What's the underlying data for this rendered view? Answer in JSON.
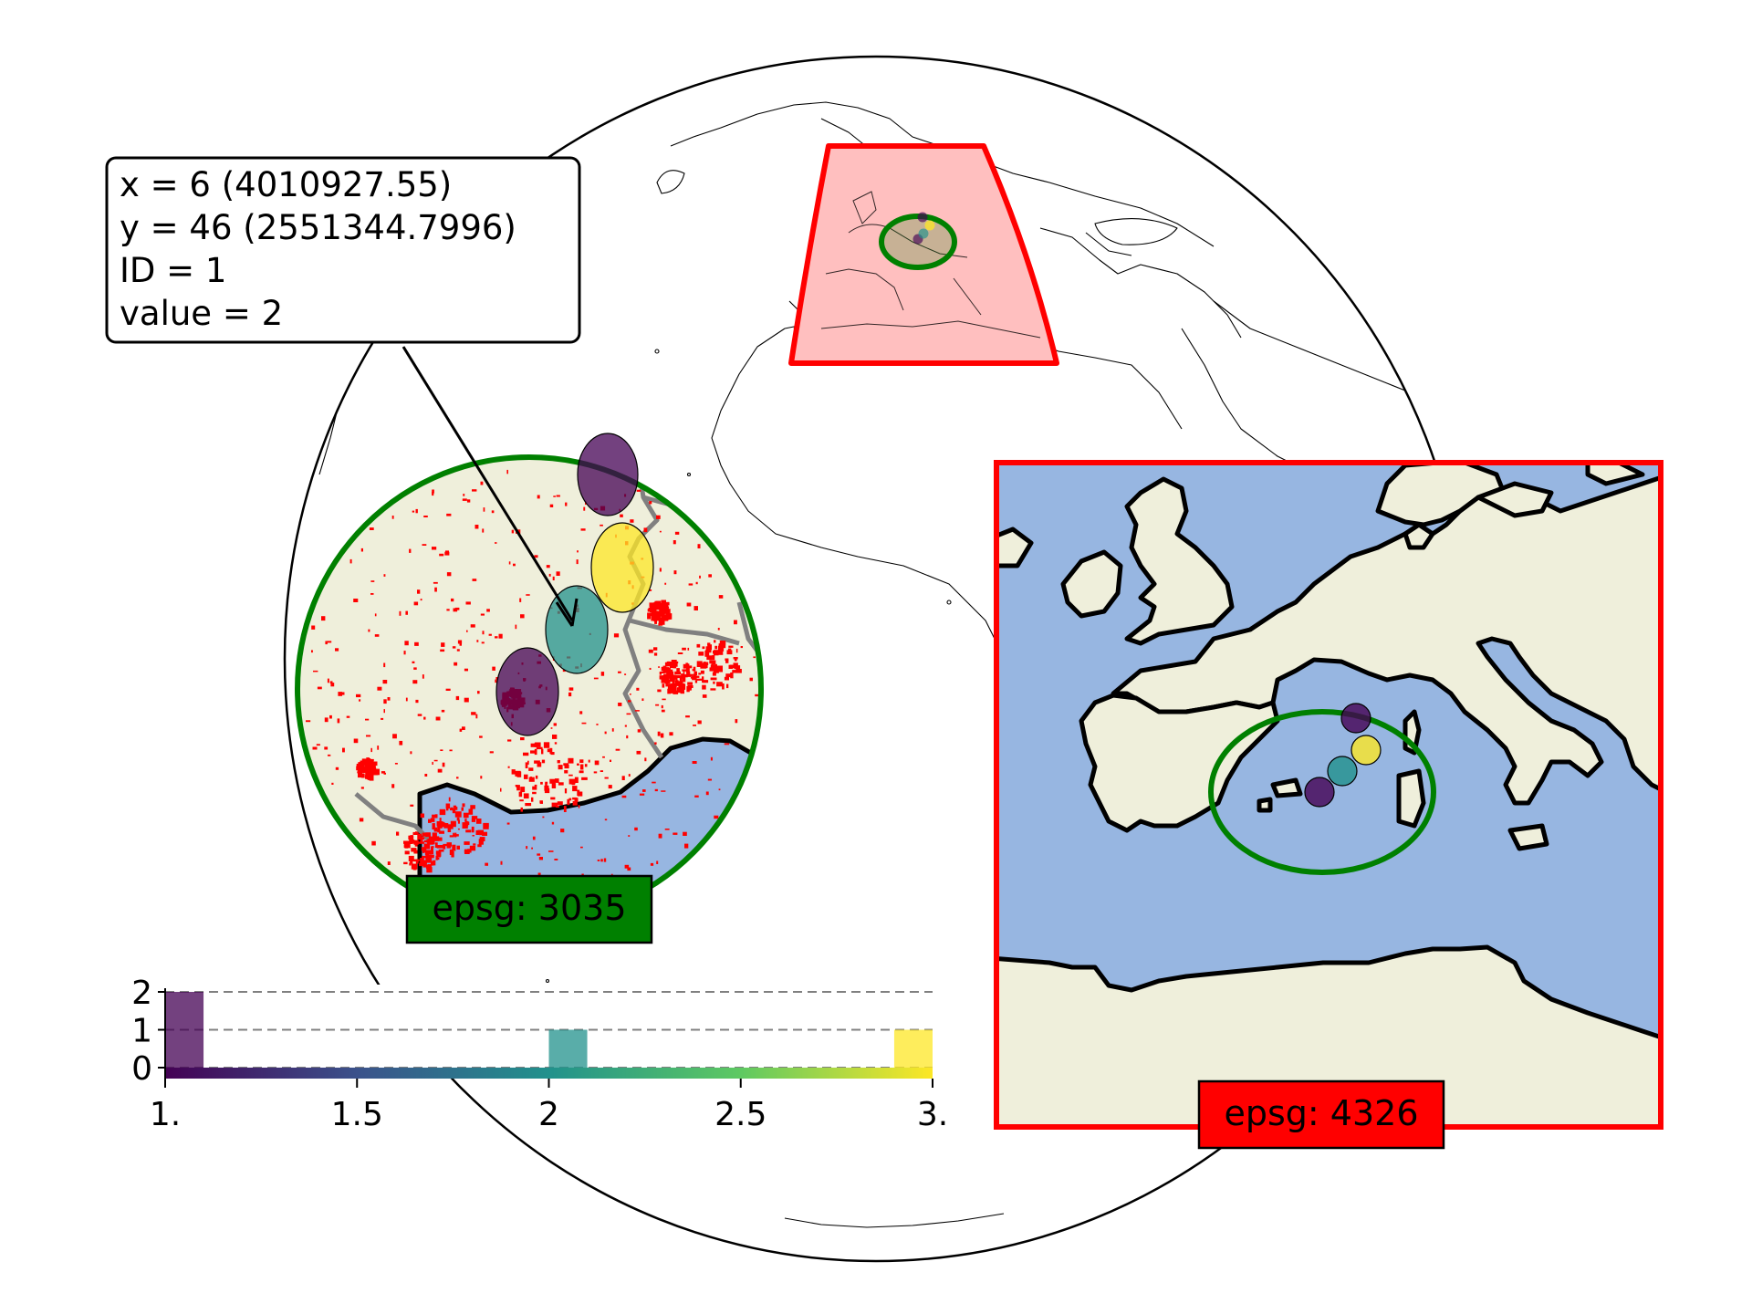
{
  "annotation": {
    "x_line": "x = 6 (4010927.55)",
    "y_line": "y = 46 (2551344.7996)",
    "id_line": "ID = 1",
    "value_line": "value = 2"
  },
  "inset_3035": {
    "label": "epsg: 3035"
  },
  "inset_4326": {
    "label": "epsg: 4326"
  },
  "colors": {
    "land": "#efefdb",
    "ocean": "#97b6e1",
    "inset_4326_frame": "#ff0000",
    "inset_3035_frame": "#008000",
    "extent_fill": "#ffbfbf",
    "urban": "#ff0000",
    "borders": "#808080",
    "viridis_low": "#440154",
    "viridis_mid": "#21918c",
    "viridis_high": "#fde725"
  },
  "points": [
    {
      "id": 0,
      "value": 1,
      "color": "#440154"
    },
    {
      "id": 1,
      "value": 2,
      "color": "#21918c"
    },
    {
      "id": 2,
      "value": 3,
      "color": "#fde725"
    },
    {
      "id": 3,
      "value": 1,
      "color": "#440154"
    }
  ],
  "chart_data": {
    "type": "bar",
    "title": "",
    "xlabel": "",
    "ylabel": "",
    "x_ticks": [
      "1.",
      "1.5",
      "2",
      "2.5",
      "3."
    ],
    "y_ticks": [
      "0",
      "1",
      "2"
    ],
    "xlim": [
      1.0,
      3.0
    ],
    "ylim": [
      0,
      2
    ],
    "bins": [
      {
        "x0": 1.0,
        "x1": 1.1,
        "count": 2,
        "color": "#440154"
      },
      {
        "x0": 2.0,
        "x1": 2.1,
        "count": 1,
        "color": "#21918c"
      },
      {
        "x0": 2.9,
        "x1": 3.0,
        "count": 1,
        "color": "#fde725"
      }
    ],
    "grid": "horizontal dashed",
    "colormap": "viridis"
  }
}
